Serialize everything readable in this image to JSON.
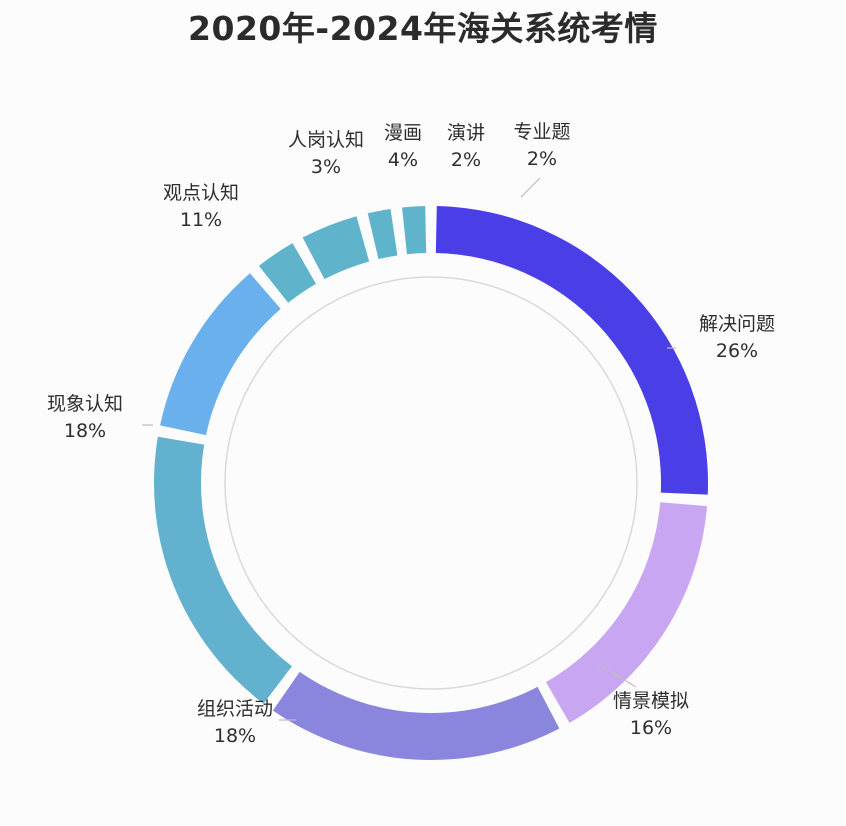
{
  "chart_data": {
    "type": "pie",
    "title": "2020年-2024年海关系统考情",
    "start": "top",
    "direction": "clockwise",
    "slices": [
      {
        "label": "解决问题",
        "value": 26,
        "pct": "26%",
        "color": "#4a3fe6"
      },
      {
        "label": "情景模拟",
        "value": 16,
        "pct": "16%",
        "color": "#c8a6f2"
      },
      {
        "label": "组织活动",
        "value": 18,
        "pct": "18%",
        "color": "#8a86de"
      },
      {
        "label": "现象认知",
        "value": 18,
        "pct": "18%",
        "color": "#62b2cf"
      },
      {
        "label": "观点认知",
        "value": 11,
        "pct": "11%",
        "color": "#6ab0ec"
      },
      {
        "label": "人岗认知",
        "value": 3,
        "pct": "3%",
        "color": "#5fb4cb"
      },
      {
        "label": "漫画",
        "value": 4,
        "pct": "4%",
        "color": "#5fb4cb"
      },
      {
        "label": "演讲",
        "value": 2,
        "pct": "2%",
        "color": "#5fb4cb"
      },
      {
        "label": "专业题",
        "value": 2,
        "pct": "2%",
        "color": "#5fb4cb"
      }
    ]
  }
}
